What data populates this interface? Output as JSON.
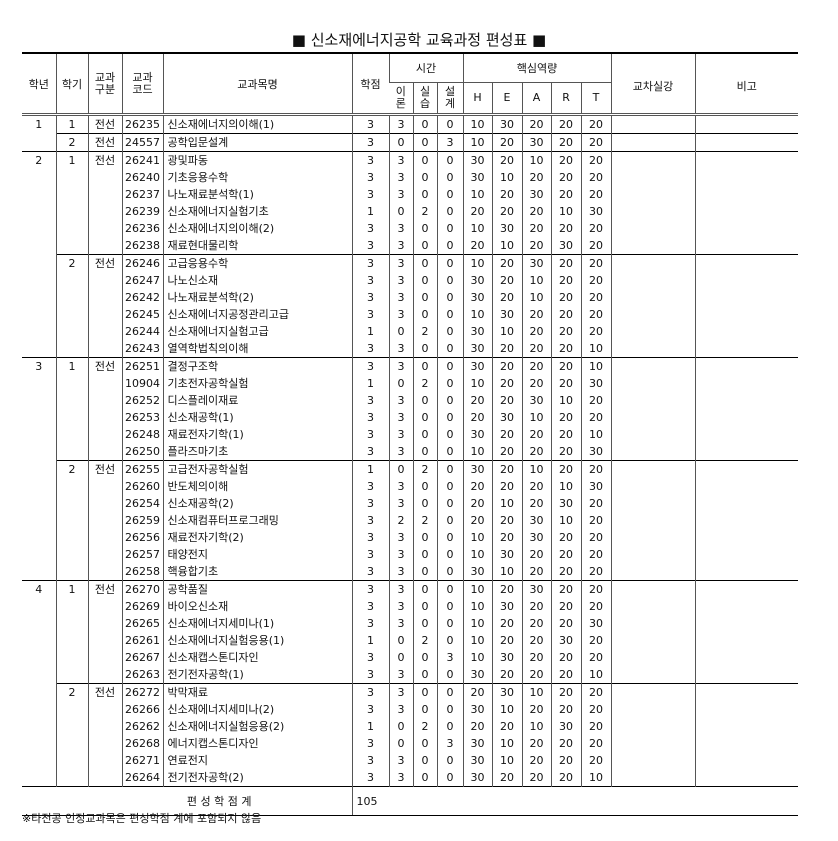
{
  "title": "■ 신소재에너지공학 교육과정 편성표 ■",
  "headers": {
    "year": "학년",
    "semester": "학기",
    "category": "교과\n구분",
    "code": "교과\n코드",
    "name": "교과목명",
    "credits": "학점",
    "time": "시간",
    "theory": "이\n론",
    "practice": "실\n습",
    "design": "설\n계",
    "core": "핵심역량",
    "H": "H",
    "E": "E",
    "A": "A",
    "R": "R",
    "T": "T",
    "cross": "교차실강",
    "remark": "비고"
  },
  "groups": [
    {
      "year": "1",
      "semester": "1",
      "category": "전선",
      "courses": [
        [
          "26235",
          "신소재에너지의이해(1)",
          "3",
          "3",
          "0",
          "0",
          "10",
          "30",
          "20",
          "20",
          "20"
        ]
      ]
    },
    {
      "year": "",
      "semester": "2",
      "category": "전선",
      "courses": [
        [
          "24557",
          "공학입문설계",
          "3",
          "0",
          "0",
          "3",
          "10",
          "20",
          "30",
          "20",
          "20"
        ]
      ]
    },
    {
      "year": "2",
      "semester": "1",
      "category": "전선",
      "courses": [
        [
          "26241",
          "광및파동",
          "3",
          "3",
          "0",
          "0",
          "30",
          "20",
          "10",
          "20",
          "20"
        ],
        [
          "26240",
          "기초응용수학",
          "3",
          "3",
          "0",
          "0",
          "30",
          "10",
          "20",
          "20",
          "20"
        ],
        [
          "26237",
          "나노재료분석학(1)",
          "3",
          "3",
          "0",
          "0",
          "10",
          "20",
          "30",
          "20",
          "20"
        ],
        [
          "26239",
          "신소재에너지실험기초",
          "1",
          "0",
          "2",
          "0",
          "20",
          "20",
          "20",
          "10",
          "30"
        ],
        [
          "26236",
          "신소재에너지의이해(2)",
          "3",
          "3",
          "0",
          "0",
          "10",
          "30",
          "20",
          "20",
          "20"
        ],
        [
          "26238",
          "재료현대물리학",
          "3",
          "3",
          "0",
          "0",
          "20",
          "10",
          "20",
          "30",
          "20"
        ]
      ]
    },
    {
      "year": "",
      "semester": "2",
      "category": "전선",
      "courses": [
        [
          "26246",
          "고급응용수학",
          "3",
          "3",
          "0",
          "0",
          "10",
          "20",
          "30",
          "20",
          "20"
        ],
        [
          "26247",
          "나노신소재",
          "3",
          "3",
          "0",
          "0",
          "30",
          "20",
          "10",
          "20",
          "20"
        ],
        [
          "26242",
          "나노재료분석학(2)",
          "3",
          "3",
          "0",
          "0",
          "30",
          "20",
          "10",
          "20",
          "20"
        ],
        [
          "26245",
          "신소재에너지공정관리고급",
          "3",
          "3",
          "0",
          "0",
          "10",
          "30",
          "20",
          "20",
          "20"
        ],
        [
          "26244",
          "신소재에너지실험고급",
          "1",
          "0",
          "2",
          "0",
          "30",
          "10",
          "20",
          "20",
          "20"
        ],
        [
          "26243",
          "열역학법칙의이해",
          "3",
          "3",
          "0",
          "0",
          "30",
          "20",
          "20",
          "20",
          "10"
        ]
      ]
    },
    {
      "year": "3",
      "semester": "1",
      "category": "전선",
      "courses": [
        [
          "26251",
          "결정구조학",
          "3",
          "3",
          "0",
          "0",
          "30",
          "20",
          "20",
          "20",
          "10"
        ],
        [
          "10904",
          "기초전자공학실험",
          "1",
          "0",
          "2",
          "0",
          "10",
          "20",
          "20",
          "20",
          "30"
        ],
        [
          "26252",
          "디스플레이재료",
          "3",
          "3",
          "0",
          "0",
          "20",
          "20",
          "30",
          "10",
          "20"
        ],
        [
          "26253",
          "신소재공학(1)",
          "3",
          "3",
          "0",
          "0",
          "20",
          "30",
          "10",
          "20",
          "20"
        ],
        [
          "26248",
          "재료전자기학(1)",
          "3",
          "3",
          "0",
          "0",
          "30",
          "20",
          "20",
          "20",
          "10"
        ],
        [
          "26250",
          "플라즈마기초",
          "3",
          "3",
          "0",
          "0",
          "10",
          "20",
          "20",
          "20",
          "30"
        ]
      ]
    },
    {
      "year": "",
      "semester": "2",
      "category": "전선",
      "courses": [
        [
          "26255",
          "고급전자공학실험",
          "1",
          "0",
          "2",
          "0",
          "30",
          "20",
          "10",
          "20",
          "20"
        ],
        [
          "26260",
          "반도체의이해",
          "3",
          "3",
          "0",
          "0",
          "20",
          "20",
          "20",
          "10",
          "30"
        ],
        [
          "26254",
          "신소재공학(2)",
          "3",
          "3",
          "0",
          "0",
          "20",
          "10",
          "20",
          "30",
          "20"
        ],
        [
          "26259",
          "신소재컴퓨터프로그래밍",
          "3",
          "2",
          "2",
          "0",
          "20",
          "20",
          "30",
          "10",
          "20"
        ],
        [
          "26256",
          "재료전자기학(2)",
          "3",
          "3",
          "0",
          "0",
          "10",
          "20",
          "30",
          "20",
          "20"
        ],
        [
          "26257",
          "태양전지",
          "3",
          "3",
          "0",
          "0",
          "10",
          "30",
          "20",
          "20",
          "20"
        ],
        [
          "26258",
          "핵융합기초",
          "3",
          "3",
          "0",
          "0",
          "30",
          "10",
          "20",
          "20",
          "20"
        ]
      ]
    },
    {
      "year": "4",
      "semester": "1",
      "category": "전선",
      "courses": [
        [
          "26270",
          "공학품질",
          "3",
          "3",
          "0",
          "0",
          "10",
          "20",
          "30",
          "20",
          "20"
        ],
        [
          "26269",
          "바이오신소재",
          "3",
          "3",
          "0",
          "0",
          "10",
          "30",
          "20",
          "20",
          "20"
        ],
        [
          "26265",
          "신소재에너지세미나(1)",
          "3",
          "3",
          "0",
          "0",
          "10",
          "20",
          "20",
          "20",
          "30"
        ],
        [
          "26261",
          "신소재에너지실험응용(1)",
          "1",
          "0",
          "2",
          "0",
          "10",
          "20",
          "20",
          "30",
          "20"
        ],
        [
          "26267",
          "신소재캡스톤디자인",
          "3",
          "0",
          "0",
          "3",
          "10",
          "30",
          "20",
          "20",
          "20"
        ],
        [
          "26263",
          "전기전자공학(1)",
          "3",
          "3",
          "0",
          "0",
          "30",
          "20",
          "20",
          "20",
          "10"
        ]
      ]
    },
    {
      "year": "",
      "semester": "2",
      "category": "전선",
      "courses": [
        [
          "26272",
          "박막재료",
          "3",
          "3",
          "0",
          "0",
          "20",
          "30",
          "10",
          "20",
          "20"
        ],
        [
          "26266",
          "신소재에너지세미나(2)",
          "3",
          "3",
          "0",
          "0",
          "30",
          "10",
          "20",
          "20",
          "20"
        ],
        [
          "26262",
          "신소재에너지실험응용(2)",
          "1",
          "0",
          "2",
          "0",
          "20",
          "20",
          "10",
          "30",
          "20"
        ],
        [
          "26268",
          "에너지캡스톤디자인",
          "3",
          "0",
          "0",
          "3",
          "30",
          "10",
          "20",
          "20",
          "20"
        ],
        [
          "26271",
          "연료전지",
          "3",
          "3",
          "0",
          "0",
          "30",
          "10",
          "20",
          "20",
          "20"
        ],
        [
          "26264",
          "전기전자공학(2)",
          "3",
          "3",
          "0",
          "0",
          "30",
          "20",
          "20",
          "20",
          "10"
        ]
      ]
    }
  ],
  "total": {
    "label": "편 성 학 점 계",
    "value": "105"
  },
  "note": "※타전공 인정교과목은 편성학점 계에 포함되지 않음"
}
